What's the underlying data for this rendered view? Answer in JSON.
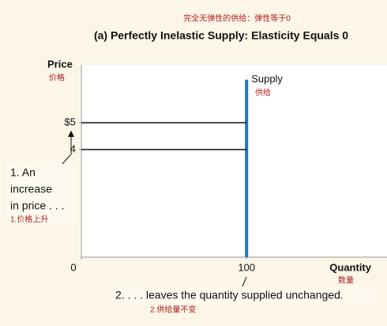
{
  "chart_data": {
    "type": "line",
    "subtitle": "完全无弹性的供给：弹性等于0",
    "title": "(a) Perfectly Inelastic Supply: Elasticity Equals 0",
    "y_label": "Price",
    "y_label_cn": "价格",
    "x_label": "Quantity",
    "x_label_cn": "数量",
    "xlim": [
      0,
      185
    ],
    "xticks": [
      0,
      100
    ],
    "ylim": [
      0,
      7.15
    ],
    "yticks": [
      {
        "value": 5,
        "label": "$5"
      },
      4
    ],
    "series": [
      {
        "name": "Supply",
        "color": "#1b78c2",
        "x": [
          100,
          100
        ],
        "values": [
          0,
          6.6
        ]
      },
      {
        "color": "#111111",
        "x": [
          0,
          100
        ],
        "values": [
          5,
          5
        ]
      },
      {
        "color": "#111111",
        "x": [
          0,
          100
        ],
        "values": [
          4,
          4
        ]
      }
    ],
    "annotations": [
      "供给",
      "1. An",
      "increase",
      "in price . . .",
      "1.价格上升",
      "2. . . . leaves the quantity supplied unchanged.",
      "2.供给量不变"
    ]
  }
}
